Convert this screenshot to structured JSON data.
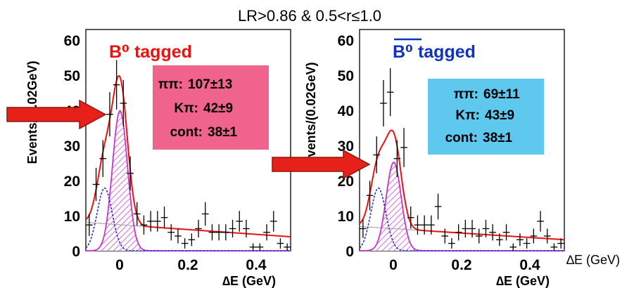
{
  "figure": {
    "title": "LR>0.86 & 0.5<r≤1.0",
    "extra_axis_label": "∆E (GeV)",
    "arrow_color": "#e8201a"
  },
  "chart_data": [
    {
      "type": "histogram",
      "title": "B⁰ tagged",
      "title_color": "#ee1111",
      "xlabel": "∆E (GeV)",
      "ylabel": "Events/(0.02GeV)",
      "xlim": [
        -0.1,
        0.5
      ],
      "ylim": [
        0,
        60
      ],
      "x_ticks": [
        "0",
        "0.2",
        "0.4"
      ],
      "y_ticks": [
        "0",
        "10",
        "20",
        "30",
        "40",
        "50",
        "60"
      ],
      "info_box": {
        "color": "#f0638c",
        "lines": [
          {
            "label": "ππ:",
            "value": "107±13"
          },
          {
            "label": "Kπ:",
            "value": "42±9"
          },
          {
            "label": "cont:",
            "value": "38±1"
          }
        ]
      },
      "points": [
        {
          "x": -0.09,
          "y": 7,
          "err": 3
        },
        {
          "x": -0.07,
          "y": 18,
          "err": 4.5
        },
        {
          "x": -0.05,
          "y": 25,
          "err": 5
        },
        {
          "x": -0.03,
          "y": 37,
          "err": 6
        },
        {
          "x": -0.01,
          "y": 45,
          "err": 6.7
        },
        {
          "x": 0.01,
          "y": 40,
          "err": 6.3
        },
        {
          "x": 0.03,
          "y": 21,
          "err": 4.6
        },
        {
          "x": 0.05,
          "y": 10,
          "err": 3.2
        },
        {
          "x": 0.07,
          "y": 7,
          "err": 2.6
        },
        {
          "x": 0.09,
          "y": 8,
          "err": 2.8
        },
        {
          "x": 0.11,
          "y": 8,
          "err": 2.8
        },
        {
          "x": 0.13,
          "y": 9,
          "err": 3
        },
        {
          "x": 0.15,
          "y": 5,
          "err": 2.2
        },
        {
          "x": 0.17,
          "y": 4,
          "err": 2
        },
        {
          "x": 0.19,
          "y": 2,
          "err": 1.4
        },
        {
          "x": 0.21,
          "y": 3,
          "err": 1.7
        },
        {
          "x": 0.23,
          "y": 6,
          "err": 2.4
        },
        {
          "x": 0.25,
          "y": 10,
          "err": 3.2
        },
        {
          "x": 0.27,
          "y": 5,
          "err": 2.2
        },
        {
          "x": 0.29,
          "y": 5,
          "err": 2.2
        },
        {
          "x": 0.31,
          "y": 5,
          "err": 2.2
        },
        {
          "x": 0.33,
          "y": 6,
          "err": 2.4
        },
        {
          "x": 0.35,
          "y": 8,
          "err": 2.8
        },
        {
          "x": 0.37,
          "y": 6,
          "err": 2.4
        },
        {
          "x": 0.39,
          "y": 1,
          "err": 1
        },
        {
          "x": 0.41,
          "y": 1,
          "err": 1
        },
        {
          "x": 0.43,
          "y": 5,
          "err": 2.2
        },
        {
          "x": 0.45,
          "y": 8,
          "err": 2.8
        },
        {
          "x": 0.47,
          "y": 2,
          "err": 1.4
        },
        {
          "x": 0.49,
          "y": 1,
          "err": 1
        }
      ],
      "fit": {
        "sig_amp": 38,
        "sig_mean": 0.0,
        "sig_sigma": 0.022,
        "kpi_amp": 17,
        "kpi_mean": -0.045,
        "kpi_sigma": 0.022,
        "bg_start": 7.7,
        "bg_slope": -6.5
      },
      "colors": {
        "total": "#ee1111",
        "kpi": "#2233cc",
        "signal": "#cc33cc",
        "background": "#aaaaaa"
      }
    },
    {
      "type": "histogram",
      "title": "B⁰ tagged",
      "title_bar": true,
      "title_color": "#1133bb",
      "xlabel": "∆E (GeV)",
      "ylabel": "Events/(0.02GeV)",
      "xlim": [
        -0.1,
        0.5
      ],
      "ylim": [
        0,
        60
      ],
      "x_ticks": [
        "0",
        "0.2",
        "0.4"
      ],
      "y_ticks": [
        "0",
        "10",
        "20",
        "30",
        "40",
        "50",
        "60"
      ],
      "info_box": {
        "color": "#5ec8ef",
        "lines": [
          {
            "label": "ππ:",
            "value": "69±11"
          },
          {
            "label": "Kπ:",
            "value": "43±9"
          },
          {
            "label": "cont:",
            "value": "38±1"
          }
        ]
      },
      "points": [
        {
          "x": -0.09,
          "y": 6,
          "err": 2.5
        },
        {
          "x": -0.07,
          "y": 15,
          "err": 4
        },
        {
          "x": -0.05,
          "y": 26,
          "err": 5
        },
        {
          "x": -0.03,
          "y": 40,
          "err": 6.3
        },
        {
          "x": -0.01,
          "y": 43,
          "err": 6.5
        },
        {
          "x": 0.01,
          "y": 25,
          "err": 5
        },
        {
          "x": 0.03,
          "y": 28,
          "err": 5.3
        },
        {
          "x": 0.05,
          "y": 9,
          "err": 3
        },
        {
          "x": 0.07,
          "y": 7,
          "err": 2.6
        },
        {
          "x": 0.09,
          "y": 7,
          "err": 2.6
        },
        {
          "x": 0.11,
          "y": 7,
          "err": 2.6
        },
        {
          "x": 0.13,
          "y": 12,
          "err": 3.5
        },
        {
          "x": 0.15,
          "y": 4,
          "err": 2
        },
        {
          "x": 0.17,
          "y": 2,
          "err": 1.4
        },
        {
          "x": 0.19,
          "y": 5,
          "err": 2.2
        },
        {
          "x": 0.21,
          "y": 6,
          "err": 2.4
        },
        {
          "x": 0.23,
          "y": 6,
          "err": 2.4
        },
        {
          "x": 0.25,
          "y": 4,
          "err": 2
        },
        {
          "x": 0.27,
          "y": 6,
          "err": 2.4
        },
        {
          "x": 0.29,
          "y": 5,
          "err": 2.2
        },
        {
          "x": 0.31,
          "y": 3,
          "err": 1.7
        },
        {
          "x": 0.33,
          "y": 5,
          "err": 2.2
        },
        {
          "x": 0.35,
          "y": 1,
          "err": 1
        },
        {
          "x": 0.37,
          "y": 3,
          "err": 1.7
        },
        {
          "x": 0.39,
          "y": 2,
          "err": 1.4
        },
        {
          "x": 0.41,
          "y": 4,
          "err": 2
        },
        {
          "x": 0.43,
          "y": 8,
          "err": 2.8
        },
        {
          "x": 0.45,
          "y": 4,
          "err": 2
        },
        {
          "x": 0.47,
          "y": 1,
          "err": 1
        },
        {
          "x": 0.49,
          "y": 2,
          "err": 1.4
        }
      ],
      "fit": {
        "sig_amp": 24,
        "sig_mean": 0.0,
        "sig_sigma": 0.022,
        "kpi_amp": 17,
        "kpi_mean": -0.045,
        "kpi_sigma": 0.022,
        "bg_start": 6.6,
        "bg_slope": -6.0
      },
      "colors": {
        "total": "#ee1111",
        "kpi": "#2233cc",
        "signal": "#cc33cc",
        "background": "#aaaaaa"
      }
    }
  ]
}
